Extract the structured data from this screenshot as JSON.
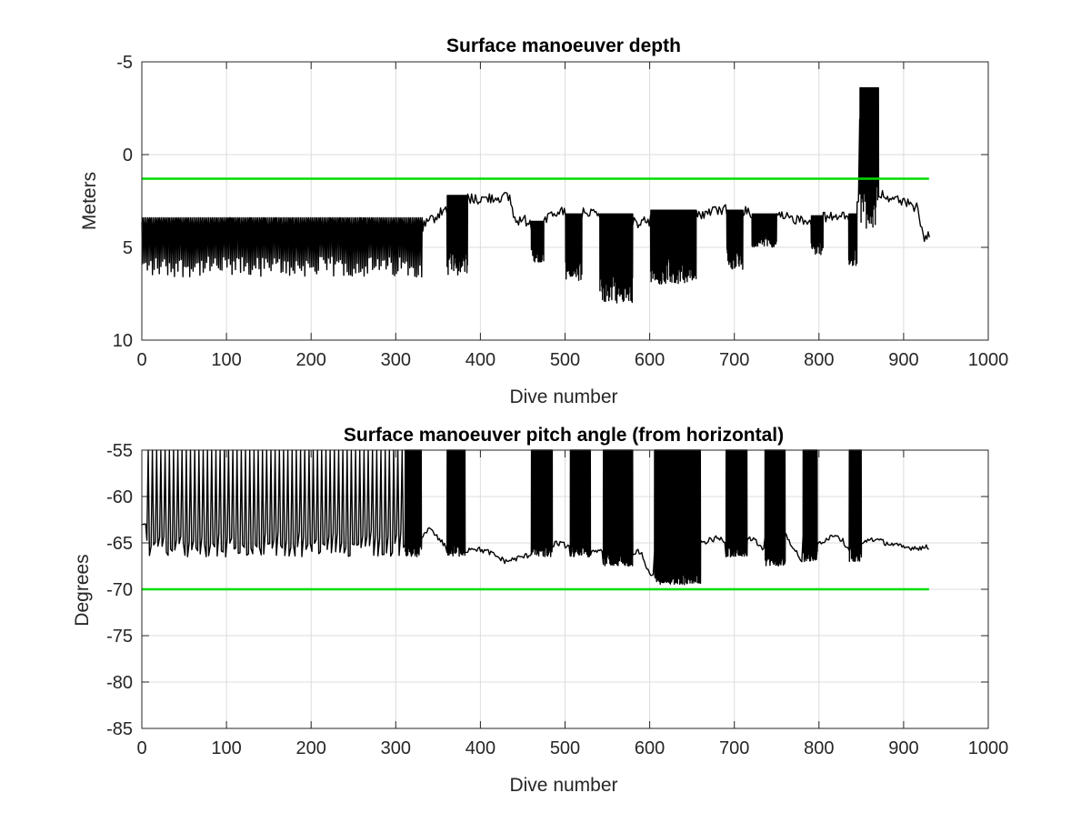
{
  "colors": {
    "series": "#000000",
    "threshold": "#00dd00",
    "grid": "#dcdcdc",
    "axis": "#262626"
  },
  "chart_data": [
    {
      "type": "line",
      "title": "Surface manoeuver depth",
      "xlabel": "Dive number",
      "ylabel": "Meters",
      "xlim": [
        0,
        1000
      ],
      "ylim": [
        -5,
        10
      ],
      "y_reversed": true,
      "xticks": [
        "0",
        "100",
        "200",
        "300",
        "400",
        "500",
        "600",
        "700",
        "800",
        "900",
        "1000"
      ],
      "yticks": [
        "-5",
        "0",
        "5",
        "10"
      ],
      "grid": true,
      "threshold": {
        "y": 1.3,
        "x": [
          0,
          930
        ]
      },
      "baseline": [
        [
          0,
          4.0
        ],
        [
          20,
          4.2
        ],
        [
          40,
          4.6
        ],
        [
          60,
          4.2
        ],
        [
          80,
          4.0
        ],
        [
          100,
          4.1
        ],
        [
          120,
          4.1
        ],
        [
          140,
          4.1
        ],
        [
          160,
          4.0
        ],
        [
          180,
          3.9
        ],
        [
          200,
          3.9
        ],
        [
          220,
          4.0
        ],
        [
          240,
          4.2
        ],
        [
          260,
          4.3
        ],
        [
          280,
          4.3
        ],
        [
          300,
          4.4
        ],
        [
          320,
          4.2
        ],
        [
          330,
          4.0
        ],
        [
          345,
          3.4
        ],
        [
          360,
          2.9
        ],
        [
          370,
          2.5
        ],
        [
          380,
          2.2
        ],
        [
          390,
          2.4
        ],
        [
          400,
          2.4
        ],
        [
          420,
          2.3
        ],
        [
          435,
          2.3
        ],
        [
          440,
          3.5
        ],
        [
          460,
          3.6
        ],
        [
          470,
          3.6
        ],
        [
          480,
          3.5
        ],
        [
          490,
          3.1
        ],
        [
          520,
          3.1
        ],
        [
          540,
          3.0
        ],
        [
          550,
          3.7
        ],
        [
          560,
          3.7
        ],
        [
          580,
          3.7
        ],
        [
          600,
          3.6
        ],
        [
          620,
          3.4
        ],
        [
          640,
          3.2
        ],
        [
          660,
          3.2
        ],
        [
          680,
          3.0
        ],
        [
          700,
          3.0
        ],
        [
          720,
          3.1
        ],
        [
          740,
          3.3
        ],
        [
          760,
          3.4
        ],
        [
          780,
          3.5
        ],
        [
          800,
          3.4
        ],
        [
          820,
          3.4
        ],
        [
          835,
          3.3
        ],
        [
          850,
          2.2
        ],
        [
          860,
          2.0
        ],
        [
          880,
          2.2
        ],
        [
          900,
          2.6
        ],
        [
          915,
          2.8
        ],
        [
          923,
          4.4
        ],
        [
          932,
          4.5
        ]
      ],
      "spike_regions": [
        {
          "x": [
            0,
            330
          ],
          "y": [
            3.4,
            6.6
          ],
          "step": 2
        },
        {
          "x": [
            360,
            385
          ],
          "y": [
            2.2,
            6.5
          ],
          "step": 0.6
        },
        {
          "x": [
            460,
            475
          ],
          "y": [
            3.6,
            5.8
          ],
          "step": 0.5
        },
        {
          "x": [
            500,
            520
          ],
          "y": [
            3.2,
            6.8
          ],
          "step": 0.5
        },
        {
          "x": [
            540,
            580
          ],
          "y": [
            3.2,
            8.0
          ],
          "step": 0.5
        },
        {
          "x": [
            600,
            655
          ],
          "y": [
            3.0,
            7.0
          ],
          "step": 0.5
        },
        {
          "x": [
            690,
            710
          ],
          "y": [
            3.0,
            6.2
          ],
          "step": 0.6
        },
        {
          "x": [
            720,
            750
          ],
          "y": [
            3.2,
            5.0
          ],
          "step": 0.6
        },
        {
          "x": [
            790,
            805
          ],
          "y": [
            3.3,
            5.4
          ],
          "step": 0.6
        },
        {
          "x": [
            835,
            845
          ],
          "y": [
            3.2,
            6.0
          ],
          "step": 0.5
        },
        {
          "x": [
            848,
            870
          ],
          "y": [
            -3.6,
            4.0
          ],
          "step": 0.7
        }
      ]
    },
    {
      "type": "line",
      "title": "Surface manoeuver pitch angle (from horizontal)",
      "xlabel": "Dive number",
      "ylabel": "Degrees",
      "xlim": [
        0,
        1000
      ],
      "ylim": [
        -85,
        -55
      ],
      "y_reversed": false,
      "xticks": [
        "0",
        "100",
        "200",
        "300",
        "400",
        "500",
        "600",
        "700",
        "800",
        "900",
        "1000"
      ],
      "yticks": [
        "-55",
        "-60",
        "-65",
        "-70",
        "-75",
        "-80",
        "-85"
      ],
      "grid": true,
      "threshold": {
        "y": -70,
        "x": [
          0,
          930
        ]
      },
      "baseline": [
        [
          0,
          -63
        ],
        [
          20,
          -64
        ],
        [
          40,
          -64
        ],
        [
          60,
          -64
        ],
        [
          80,
          -64
        ],
        [
          100,
          -64
        ],
        [
          120,
          -64
        ],
        [
          140,
          -64
        ],
        [
          160,
          -63.5
        ],
        [
          180,
          -63.5
        ],
        [
          200,
          -63.5
        ],
        [
          220,
          -64
        ],
        [
          240,
          -64
        ],
        [
          260,
          -64
        ],
        [
          280,
          -64
        ],
        [
          300,
          -64.5
        ],
        [
          320,
          -65
        ],
        [
          340,
          -63.5
        ],
        [
          355,
          -65
        ],
        [
          370,
          -66.5
        ],
        [
          390,
          -65.5
        ],
        [
          410,
          -66
        ],
        [
          430,
          -67
        ],
        [
          450,
          -66.5
        ],
        [
          470,
          -66
        ],
        [
          490,
          -65
        ],
        [
          510,
          -65.5
        ],
        [
          530,
          -66
        ],
        [
          550,
          -65.5
        ],
        [
          570,
          -66
        ],
        [
          590,
          -66
        ],
        [
          600,
          -68.5
        ],
        [
          620,
          -67
        ],
        [
          640,
          -66
        ],
        [
          660,
          -65
        ],
        [
          680,
          -64.5
        ],
        [
          700,
          -65
        ],
        [
          720,
          -64.5
        ],
        [
          740,
          -66
        ],
        [
          760,
          -64
        ],
        [
          780,
          -67
        ],
        [
          800,
          -65
        ],
        [
          820,
          -64
        ],
        [
          840,
          -66
        ],
        [
          860,
          -64.5
        ],
        [
          880,
          -65
        ],
        [
          900,
          -65.5
        ],
        [
          920,
          -65.5
        ],
        [
          930,
          -65.5
        ]
      ],
      "spike_regions": [
        {
          "x": [
            5,
            310
          ],
          "y": [
            -66.5,
            -55
          ],
          "step": 5
        },
        {
          "x": [
            310,
            330
          ],
          "y": [
            -66.5,
            -55
          ],
          "step": 0.7
        },
        {
          "x": [
            360,
            382
          ],
          "y": [
            -66.5,
            -55
          ],
          "step": 0.6
        },
        {
          "x": [
            460,
            485
          ],
          "y": [
            -66.5,
            -55
          ],
          "step": 0.5
        },
        {
          "x": [
            505,
            530
          ],
          "y": [
            -66.5,
            -55
          ],
          "step": 0.5
        },
        {
          "x": [
            545,
            580
          ],
          "y": [
            -67.5,
            -55
          ],
          "step": 0.5
        },
        {
          "x": [
            605,
            660
          ],
          "y": [
            -69.5,
            -55
          ],
          "step": 0.5
        },
        {
          "x": [
            690,
            715
          ],
          "y": [
            -66.5,
            -55
          ],
          "step": 0.5
        },
        {
          "x": [
            735,
            760
          ],
          "y": [
            -67.5,
            -55
          ],
          "step": 0.5
        },
        {
          "x": [
            780,
            798
          ],
          "y": [
            -67,
            -55
          ],
          "step": 0.5
        },
        {
          "x": [
            835,
            850
          ],
          "y": [
            -67,
            -55
          ],
          "step": 0.5
        }
      ]
    }
  ]
}
